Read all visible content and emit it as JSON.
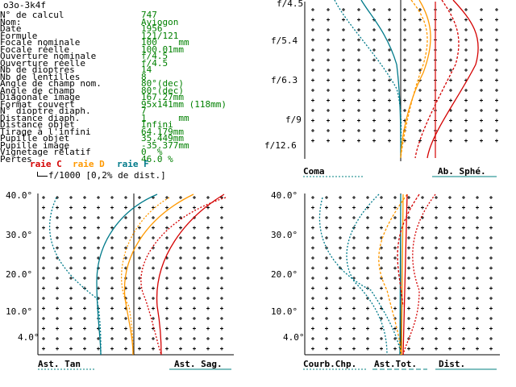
{
  "window": {
    "title": "o3o-3k4f"
  },
  "specs": [
    {
      "label": "N° de calcul",
      "value": "747"
    },
    {
      "label": "Nom:",
      "value": "Aviogon"
    },
    {
      "label": "Date",
      "value": "1956"
    },
    {
      "label": "Formule",
      "value": "121/121"
    },
    {
      "label": "Focale nominale",
      "value": "100    mm"
    },
    {
      "label": "Focale réelle",
      "value": "100.01mm"
    },
    {
      "label": "Ouverture nominale",
      "value": "f/4.5"
    },
    {
      "label": "Ouverture réelle",
      "value": "f/4.5"
    },
    {
      "label": "Nb de dioptres",
      "value": "14"
    },
    {
      "label": "Nb de lentilles",
      "value": "8"
    },
    {
      "label": "Angle de champ nom.",
      "value": "80°(dec)"
    },
    {
      "label": "Angle de champ",
      "value": "80°(dec)"
    },
    {
      "label": "Diagonale image",
      "value": "167.27mm"
    },
    {
      "label": "Format couvert",
      "value": "95x141mm (118mm)"
    },
    {
      "label": "N° dioptre diaph.",
      "value": "7"
    },
    {
      "label": "Distance diaph.",
      "value": "1      mm"
    },
    {
      "label": "Distance objet",
      "value": "Infini"
    },
    {
      "label": "Tirage à l'infini",
      "value": "64.179mm"
    },
    {
      "label": "Pupille objet",
      "value": "35.449mm"
    },
    {
      "label": "Pupille image",
      "value": "-35.377mm"
    },
    {
      "label": "Vignetage relatif",
      "value": "0  %"
    },
    {
      "label": "Pertes",
      "value": "46.0 %"
    }
  ],
  "legend": {
    "raie_c": "raie C",
    "raie_d": "raie D",
    "raie_f": "raie F",
    "scale": "f/1000 [0,2% de dist.]",
    "colors": {
      "c": "#d40000",
      "d": "#ff9900",
      "f": "#007a8a",
      "value_green": "#008000",
      "link": "#008080"
    }
  },
  "coma_chart": {
    "aperture_labels": [
      "f/4.5",
      "f/5.4",
      "f/6.3",
      "f/9",
      "f/12.6"
    ],
    "footer_left": "Coma",
    "footer_right": "Ab. Sphé."
  },
  "astig_chart": {
    "field_labels": [
      "40.0°",
      "30.0°",
      "20.0°",
      "10.0°",
      "4.0°"
    ],
    "footer_left": "Ast. Tan",
    "footer_right": "Ast. Sag."
  },
  "field_chart": {
    "field_labels": [
      "40.0°",
      "30.0°",
      "20.0°",
      "10.0°",
      "4.0°"
    ],
    "footer_left": "Courb.Chp.",
    "footer_mid": "Ast.Tot.",
    "footer_right": "Dist."
  }
}
